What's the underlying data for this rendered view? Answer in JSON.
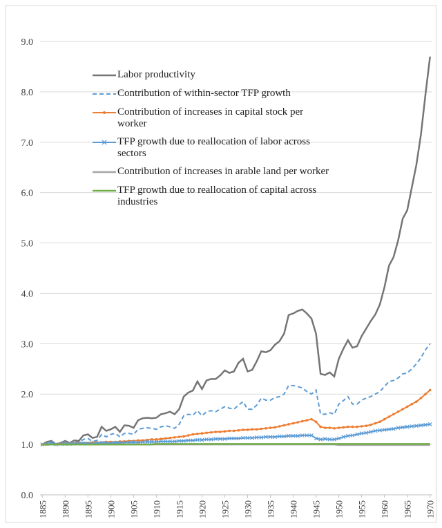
{
  "chart_data": {
    "type": "line",
    "x": [
      1885,
      1886,
      1887,
      1888,
      1889,
      1890,
      1891,
      1892,
      1893,
      1894,
      1895,
      1896,
      1897,
      1898,
      1899,
      1900,
      1901,
      1902,
      1903,
      1904,
      1905,
      1906,
      1907,
      1908,
      1909,
      1910,
      1911,
      1912,
      1913,
      1914,
      1915,
      1916,
      1917,
      1918,
      1919,
      1920,
      1921,
      1922,
      1923,
      1924,
      1925,
      1926,
      1927,
      1928,
      1929,
      1930,
      1931,
      1932,
      1933,
      1934,
      1935,
      1936,
      1937,
      1938,
      1939,
      1940,
      1941,
      1942,
      1943,
      1944,
      1945,
      1946,
      1947,
      1948,
      1949,
      1950,
      1951,
      1952,
      1953,
      1954,
      1955,
      1956,
      1957,
      1958,
      1959,
      1960,
      1961,
      1962,
      1963,
      1964,
      1965,
      1966,
      1967,
      1968,
      1969,
      1970
    ],
    "xlim": [
      1884.5,
      1970.5
    ],
    "xticks": [
      1885,
      1890,
      1895,
      1900,
      1905,
      1910,
      1915,
      1920,
      1925,
      1930,
      1935,
      1940,
      1945,
      1950,
      1955,
      1960,
      1965,
      1970
    ],
    "ylim": [
      0,
      9
    ],
    "yticks": [
      {
        "value": 0,
        "label": "0.0"
      },
      {
        "value": 1,
        "label": "1.0"
      },
      {
        "value": 2,
        "label": "2.0"
      },
      {
        "value": 3,
        "label": "3.0"
      },
      {
        "value": 4,
        "label": "4.0"
      },
      {
        "value": 5,
        "label": "5.0"
      },
      {
        "value": 6,
        "label": "6.0"
      },
      {
        "value": 7,
        "label": "7.0"
      },
      {
        "value": 8,
        "label": "8.0"
      },
      {
        "value": 9,
        "label": "9.0"
      }
    ],
    "grid": true,
    "legend": "upper left",
    "series": [
      {
        "name": "Labor productivity",
        "color": "#757575",
        "style": "solid",
        "values": [
          1.0,
          1.05,
          1.07,
          1.0,
          1.03,
          1.07,
          1.03,
          1.08,
          1.07,
          1.18,
          1.2,
          1.13,
          1.15,
          1.35,
          1.27,
          1.3,
          1.35,
          1.25,
          1.38,
          1.37,
          1.33,
          1.48,
          1.52,
          1.53,
          1.52,
          1.53,
          1.6,
          1.62,
          1.65,
          1.6,
          1.7,
          1.95,
          2.03,
          2.07,
          2.25,
          2.1,
          2.27,
          2.3,
          2.3,
          2.37,
          2.47,
          2.42,
          2.45,
          2.62,
          2.7,
          2.45,
          2.48,
          2.65,
          2.85,
          2.83,
          2.87,
          2.98,
          3.05,
          3.2,
          3.57,
          3.6,
          3.65,
          3.68,
          3.6,
          3.5,
          3.2,
          2.4,
          2.38,
          2.43,
          2.35,
          2.7,
          2.9,
          3.07,
          2.92,
          2.95,
          3.15,
          3.3,
          3.45,
          3.58,
          3.78,
          4.12,
          4.55,
          4.72,
          5.05,
          5.48,
          5.65,
          6.1,
          6.55,
          7.15,
          7.95,
          8.7
        ]
      },
      {
        "name": "Contribution of within-sector TFP growth",
        "color": "#5b9bd5",
        "style": "dashed",
        "values": [
          1.0,
          1.03,
          1.05,
          1.0,
          1.02,
          1.05,
          1.02,
          1.05,
          1.04,
          1.1,
          1.12,
          1.06,
          1.08,
          1.2,
          1.15,
          1.2,
          1.22,
          1.15,
          1.22,
          1.22,
          1.2,
          1.3,
          1.32,
          1.33,
          1.32,
          1.3,
          1.35,
          1.37,
          1.35,
          1.32,
          1.4,
          1.57,
          1.6,
          1.58,
          1.67,
          1.57,
          1.65,
          1.67,
          1.65,
          1.7,
          1.75,
          1.72,
          1.7,
          1.78,
          1.85,
          1.7,
          1.7,
          1.78,
          1.92,
          1.88,
          1.88,
          1.93,
          1.95,
          2.0,
          2.17,
          2.17,
          2.15,
          2.12,
          2.05,
          2.0,
          2.08,
          1.6,
          1.6,
          1.63,
          1.6,
          1.8,
          1.87,
          1.95,
          1.8,
          1.8,
          1.88,
          1.92,
          1.95,
          2.0,
          2.05,
          2.15,
          2.25,
          2.27,
          2.32,
          2.4,
          2.42,
          2.5,
          2.6,
          2.72,
          2.88,
          3.0
        ]
      },
      {
        "name": "Contribution of increases in capital stock per worker",
        "color": "#ed7d31",
        "style": "dots",
        "values": [
          1.0,
          1.0,
          1.01,
          1.01,
          1.01,
          1.02,
          1.02,
          1.02,
          1.03,
          1.03,
          1.03,
          1.04,
          1.04,
          1.04,
          1.05,
          1.05,
          1.05,
          1.06,
          1.06,
          1.07,
          1.07,
          1.08,
          1.08,
          1.09,
          1.1,
          1.1,
          1.11,
          1.12,
          1.13,
          1.14,
          1.15,
          1.16,
          1.18,
          1.2,
          1.21,
          1.22,
          1.23,
          1.24,
          1.25,
          1.25,
          1.26,
          1.27,
          1.27,
          1.28,
          1.29,
          1.29,
          1.3,
          1.3,
          1.31,
          1.32,
          1.33,
          1.34,
          1.36,
          1.38,
          1.4,
          1.42,
          1.44,
          1.46,
          1.48,
          1.5,
          1.45,
          1.35,
          1.33,
          1.33,
          1.32,
          1.33,
          1.34,
          1.35,
          1.35,
          1.35,
          1.36,
          1.37,
          1.39,
          1.42,
          1.45,
          1.5,
          1.55,
          1.6,
          1.65,
          1.7,
          1.75,
          1.8,
          1.85,
          1.92,
          2.0,
          2.08
        ]
      },
      {
        "name": "TFP growth due to reallocation of labor across sectors",
        "color": "#5b9bd5",
        "style": "cross",
        "values": [
          1.0,
          1.01,
          1.02,
          1.0,
          1.01,
          1.01,
          1.01,
          1.02,
          1.02,
          1.02,
          1.02,
          1.02,
          1.02,
          1.03,
          1.03,
          1.03,
          1.03,
          1.03,
          1.04,
          1.04,
          1.04,
          1.04,
          1.05,
          1.05,
          1.05,
          1.05,
          1.06,
          1.06,
          1.06,
          1.06,
          1.07,
          1.07,
          1.08,
          1.08,
          1.09,
          1.09,
          1.1,
          1.1,
          1.11,
          1.11,
          1.11,
          1.12,
          1.12,
          1.12,
          1.13,
          1.13,
          1.13,
          1.14,
          1.14,
          1.15,
          1.15,
          1.15,
          1.16,
          1.16,
          1.17,
          1.17,
          1.17,
          1.18,
          1.18,
          1.18,
          1.12,
          1.1,
          1.11,
          1.1,
          1.1,
          1.12,
          1.15,
          1.17,
          1.18,
          1.2,
          1.22,
          1.23,
          1.25,
          1.27,
          1.28,
          1.29,
          1.3,
          1.31,
          1.33,
          1.34,
          1.35,
          1.36,
          1.37,
          1.38,
          1.39,
          1.4
        ]
      },
      {
        "name": "Contribution of increases in arable land per worker",
        "color": "#a5a5a5",
        "style": "solid",
        "values": [
          1.0,
          1.0,
          1.0,
          1.0,
          1.0,
          1.0,
          1.0,
          1.0,
          1.0,
          1.0,
          1.0,
          1.0,
          1.0,
          1.0,
          1.0,
          1.0,
          1.0,
          1.0,
          1.0,
          1.0,
          1.0,
          1.0,
          1.0,
          1.0,
          1.0,
          1.0,
          1.0,
          1.0,
          1.0,
          1.0,
          1.0,
          1.0,
          1.0,
          1.0,
          1.0,
          1.0,
          1.0,
          1.0,
          1.0,
          1.0,
          1.0,
          1.0,
          1.0,
          1.0,
          1.0,
          1.0,
          1.0,
          1.0,
          1.0,
          1.0,
          1.0,
          1.0,
          1.0,
          1.0,
          1.0,
          1.0,
          1.0,
          1.0,
          1.0,
          1.0,
          1.0,
          1.0,
          1.0,
          1.0,
          1.0,
          0.99,
          0.99,
          0.99,
          0.99,
          0.99,
          0.99,
          0.99,
          0.99,
          0.99,
          0.99,
          0.99,
          0.99,
          0.99,
          0.99,
          0.99,
          0.99,
          0.99,
          0.99,
          0.99,
          0.99,
          0.99
        ]
      },
      {
        "name": "TFP growth due to reallocation of capital across industries",
        "color": "#70ad47",
        "style": "solid",
        "values": [
          1.0,
          1.0,
          1.0,
          1.0,
          1.0,
          1.0,
          1.0,
          1.0,
          1.0,
          1.0,
          1.0,
          1.0,
          1.0,
          1.0,
          1.0,
          1.0,
          1.0,
          1.0,
          1.0,
          1.0,
          1.0,
          1.0,
          1.0,
          1.0,
          1.0,
          1.01,
          1.01,
          1.01,
          1.01,
          1.01,
          1.01,
          1.01,
          1.01,
          1.01,
          1.01,
          1.01,
          1.01,
          1.01,
          1.01,
          1.01,
          1.01,
          1.01,
          1.01,
          1.01,
          1.01,
          1.01,
          1.01,
          1.01,
          1.01,
          1.01,
          1.01,
          1.01,
          1.01,
          1.01,
          1.01,
          1.01,
          1.01,
          1.01,
          1.01,
          1.01,
          1.01,
          1.01,
          1.01,
          1.01,
          1.01,
          1.01,
          1.01,
          1.01,
          1.01,
          1.01,
          1.01,
          1.01,
          1.01,
          1.01,
          1.01,
          1.01,
          1.01,
          1.01,
          1.01,
          1.01,
          1.01,
          1.01,
          1.01,
          1.01,
          1.01,
          1.01
        ]
      }
    ]
  }
}
